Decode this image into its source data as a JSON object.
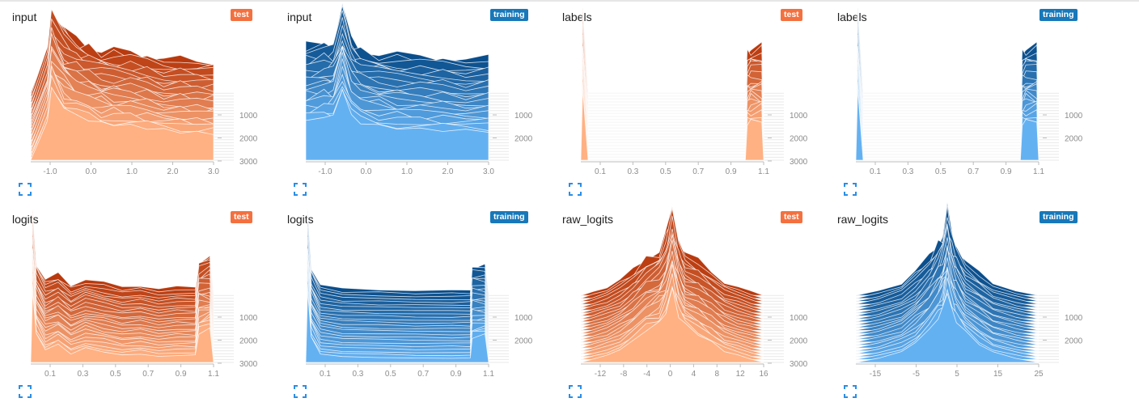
{
  "colors": {
    "test": "#f4703f",
    "training": "#1778ba",
    "test_dark": "#b93a0e",
    "test_light": "#ffb183",
    "train_dark": "#0a4e8c",
    "train_light": "#64b1f2"
  },
  "charts": [
    {
      "title": "input",
      "badge": "test",
      "run": "test",
      "chart_data": {
        "type": "histogram",
        "x_ticks": [
          "-1.0",
          "0.0",
          "1.0",
          "2.0",
          "3.0"
        ],
        "y_ticks": [
          "1000",
          "2000",
          "3000"
        ],
        "x": [
          -1.4,
          -1.0,
          -0.9,
          -0.6,
          -0.3,
          0.0,
          0.3,
          0.6,
          1.0,
          1.4,
          1.8,
          2.2,
          2.6,
          3.0
        ],
        "y": [
          0.0,
          0.55,
          1.0,
          0.74,
          0.62,
          0.56,
          0.52,
          0.5,
          0.48,
          0.45,
          0.42,
          0.4,
          0.38,
          0.38
        ]
      }
    },
    {
      "title": "input",
      "badge": "training",
      "run": "training",
      "chart_data": {
        "type": "histogram",
        "x_ticks": [
          "-1.0",
          "0.0",
          "1.0",
          "2.0",
          "3.0"
        ],
        "y_ticks": [
          "1000",
          "2000"
        ],
        "x": [
          -1.0,
          -0.6,
          -0.4,
          -0.2,
          0.0,
          0.2,
          0.6,
          1.0,
          1.5,
          2.0,
          2.5,
          3.0
        ],
        "y": [
          0.55,
          0.6,
          0.62,
          1.0,
          0.62,
          0.52,
          0.48,
          0.45,
          0.43,
          0.42,
          0.41,
          0.41
        ]
      }
    },
    {
      "title": "labels",
      "badge": "test",
      "run": "test",
      "chart_data": {
        "type": "histogram",
        "x_ticks": [
          "0.1",
          "0.3",
          "0.5",
          "0.7",
          "0.9",
          "1.1"
        ],
        "y_ticks": [
          "1000",
          "2000",
          "3000"
        ],
        "x": [
          0.0,
          0.01,
          0.04,
          0.06,
          0.9,
          0.91,
          0.93,
          0.99,
          1.0
        ],
        "y": [
          0.0,
          1.0,
          0.0,
          0.0,
          0.0,
          0.5,
          0.55,
          0.55,
          0.0
        ]
      }
    },
    {
      "title": "labels",
      "badge": "training",
      "run": "training",
      "chart_data": {
        "type": "histogram",
        "x_ticks": [
          "0.1",
          "0.3",
          "0.5",
          "0.7",
          "0.9",
          "1.1"
        ],
        "y_ticks": [
          "1000",
          "2000"
        ],
        "x": [
          0.0,
          0.01,
          0.04,
          0.06,
          0.9,
          0.91,
          0.93,
          0.99,
          1.0
        ],
        "y": [
          0.0,
          1.0,
          0.0,
          0.0,
          0.0,
          0.5,
          0.55,
          0.55,
          0.0
        ]
      }
    },
    {
      "title": "logits",
      "badge": "test",
      "run": "test",
      "chart_data": {
        "type": "histogram",
        "x_ticks": [
          "0.1",
          "0.3",
          "0.5",
          "0.7",
          "0.9",
          "1.1"
        ],
        "y_ticks": [
          "1000",
          "2000",
          "3000"
        ],
        "x": [
          0.0,
          0.01,
          0.03,
          0.08,
          0.15,
          0.22,
          0.3,
          0.4,
          0.5,
          0.6,
          0.7,
          0.8,
          0.9,
          0.92,
          0.98,
          1.0
        ],
        "y": [
          0.0,
          1.0,
          0.4,
          0.18,
          0.25,
          0.12,
          0.2,
          0.15,
          0.1,
          0.12,
          0.08,
          0.1,
          0.1,
          0.42,
          0.45,
          0.0
        ]
      }
    },
    {
      "title": "logits",
      "badge": "training",
      "run": "training",
      "chart_data": {
        "type": "histogram",
        "x_ticks": [
          "0.1",
          "0.3",
          "0.5",
          "0.7",
          "0.9",
          "1.1"
        ],
        "y_ticks": [
          "1000",
          "2000"
        ],
        "x": [
          0.0,
          0.01,
          0.03,
          0.08,
          0.2,
          0.4,
          0.6,
          0.8,
          0.9,
          0.91,
          0.98,
          1.0
        ],
        "y": [
          0.0,
          1.0,
          0.35,
          0.12,
          0.08,
          0.07,
          0.06,
          0.06,
          0.06,
          0.35,
          0.38,
          0.0
        ]
      }
    },
    {
      "title": "raw_logits",
      "badge": "test",
      "run": "test",
      "chart_data": {
        "type": "histogram",
        "x_ticks": [
          "-12",
          "-8",
          "-4",
          "0",
          "4",
          "8",
          "12",
          "16"
        ],
        "y_ticks": [
          "1000",
          "2000",
          "3000"
        ],
        "x": [
          -14,
          -12,
          -10,
          -8,
          -6,
          -4,
          -2,
          -1,
          0,
          1,
          2,
          4,
          6,
          8,
          10,
          12,
          14
        ],
        "y": [
          0.0,
          0.05,
          0.1,
          0.18,
          0.3,
          0.45,
          0.55,
          0.7,
          1.0,
          0.65,
          0.52,
          0.4,
          0.28,
          0.16,
          0.1,
          0.05,
          0.0
        ]
      }
    },
    {
      "title": "raw_logits",
      "badge": "training",
      "run": "training",
      "chart_data": {
        "type": "histogram",
        "x_ticks": [
          "-15",
          "-5",
          "5",
          "15",
          "25"
        ],
        "y_ticks": [
          "1000",
          "2000"
        ],
        "x": [
          -20,
          -15,
          -10,
          -7,
          -4,
          -2,
          -1,
          0,
          1,
          2,
          4,
          7,
          10,
          15,
          20
        ],
        "y": [
          0.0,
          0.06,
          0.15,
          0.28,
          0.45,
          0.62,
          0.75,
          1.0,
          0.72,
          0.58,
          0.42,
          0.26,
          0.14,
          0.06,
          0.0
        ]
      }
    }
  ]
}
